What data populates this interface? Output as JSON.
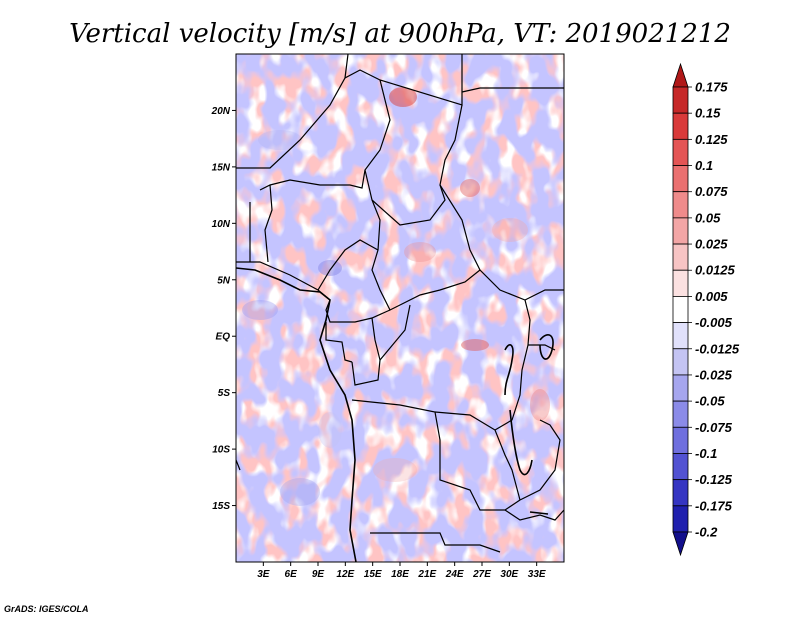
{
  "title": "Vertical velocity [m/s] at 900hPa, VT: 2019021212",
  "credit": "GrADS: IGES/COLA",
  "map": {
    "lon_range": [
      0,
      36
    ],
    "lat_range": [
      -20,
      25
    ],
    "lat_ticks": [
      {
        "value": 20,
        "label": "20N"
      },
      {
        "value": 15,
        "label": "15N"
      },
      {
        "value": 10,
        "label": "10N"
      },
      {
        "value": 5,
        "label": "5N"
      },
      {
        "value": 0,
        "label": "EQ"
      },
      {
        "value": -5,
        "label": "5S"
      },
      {
        "value": -10,
        "label": "10S"
      },
      {
        "value": -15,
        "label": "15S"
      }
    ],
    "lon_ticks": [
      {
        "value": 3,
        "label": "3E"
      },
      {
        "value": 6,
        "label": "6E"
      },
      {
        "value": 9,
        "label": "9E"
      },
      {
        "value": 12,
        "label": "12E"
      },
      {
        "value": 15,
        "label": "15E"
      },
      {
        "value": 18,
        "label": "18E"
      },
      {
        "value": 21,
        "label": "21E"
      },
      {
        "value": 24,
        "label": "24E"
      },
      {
        "value": 27,
        "label": "27E"
      },
      {
        "value": 30,
        "label": "30E"
      },
      {
        "value": 33,
        "label": "33E"
      }
    ]
  },
  "colorbar": {
    "labels": [
      "0.175",
      "0.15",
      "0.125",
      "0.1",
      "0.075",
      "0.05",
      "0.025",
      "0.0125",
      "0.005",
      "-0.005",
      "-0.0125",
      "-0.025",
      "-0.05",
      "-0.075",
      "-0.1",
      "-0.125",
      "-0.175",
      "-0.2"
    ],
    "colors": [
      "#b01818",
      "#c62828",
      "#d93a3a",
      "#e45555",
      "#ea7070",
      "#ef8b8b",
      "#f3a6a6",
      "#f7c4c4",
      "#fbe1e1",
      "#ffffff",
      "#e1e1fb",
      "#c4c4f3",
      "#a6a6ee",
      "#8b8be8",
      "#6f6fde",
      "#5252d2",
      "#3535c2",
      "#2020ae",
      "#120f8c"
    ]
  }
}
